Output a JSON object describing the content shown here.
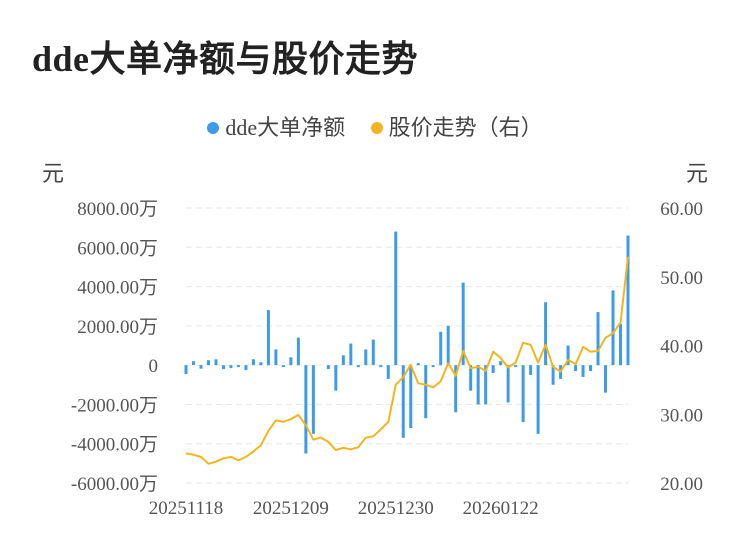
{
  "title": "dde大单净额与股价走势",
  "chart_data": {
    "type": "bar+line",
    "legend": [
      {
        "name": "dde大单净额",
        "color": "#3d9be9"
      },
      {
        "name": "股价走势（右）",
        "color": "#f3b51e"
      }
    ],
    "left_unit": "元",
    "right_unit": "元",
    "left_axis": {
      "min": -6000,
      "max": 8000,
      "step": 2000,
      "tick_labels": [
        "-6000.00万",
        "-4000.00万",
        "-2000.00万",
        "0",
        "2000.00万",
        "4000.00万",
        "6000.00万",
        "8000.00万"
      ]
    },
    "right_axis": {
      "min": 20,
      "max": 60,
      "step": 10,
      "tick_labels": [
        "20.00",
        "30.00",
        "40.00",
        "50.00",
        "60.00"
      ]
    },
    "x_tick_labels": [
      "20251118",
      "20251209",
      "20251230",
      "20260122"
    ],
    "x_tick_index": [
      0,
      14,
      28,
      42
    ],
    "grid": "horizontal-dashed",
    "dde_net_wan": [
      -450,
      200,
      -180,
      250,
      300,
      -200,
      -150,
      -100,
      -250,
      300,
      150,
      2800,
      800,
      -100,
      400,
      1400,
      -4500,
      -3500,
      0,
      -200,
      -1300,
      500,
      1100,
      -100,
      800,
      1300,
      -100,
      -700,
      6800,
      -3700,
      -3200,
      100,
      -2700,
      -100,
      1700,
      2000,
      -2400,
      4200,
      -1300,
      -2000,
      -2000,
      -400,
      200,
      -1900,
      -100,
      -2900,
      -500,
      -3500,
      3200,
      -1000,
      -700,
      1000,
      -300,
      -600,
      -300,
      2700,
      -1400,
      3800,
      2100,
      6600
    ],
    "price": [
      24.3,
      24.1,
      23.8,
      22.8,
      23.1,
      23.6,
      23.8,
      23.3,
      23.8,
      24.6,
      25.5,
      27.6,
      29.1,
      28.9,
      29.3,
      29.9,
      28.4,
      26.3,
      26.6,
      26.0,
      24.8,
      25.1,
      24.9,
      25.2,
      26.6,
      26.8,
      27.8,
      28.9,
      34.3,
      35.4,
      37.2,
      34.5,
      34.3,
      33.9,
      34.8,
      37.4,
      35.6,
      39.2,
      36.7,
      36.9,
      36.3,
      39.1,
      38.2,
      36.8,
      37.5,
      40.4,
      40.1,
      37.5,
      40.1,
      36.9,
      36.2,
      37.9,
      37.3,
      39.8,
      39.1,
      39.2,
      41.1,
      41.8,
      43.3,
      52.9
    ]
  }
}
